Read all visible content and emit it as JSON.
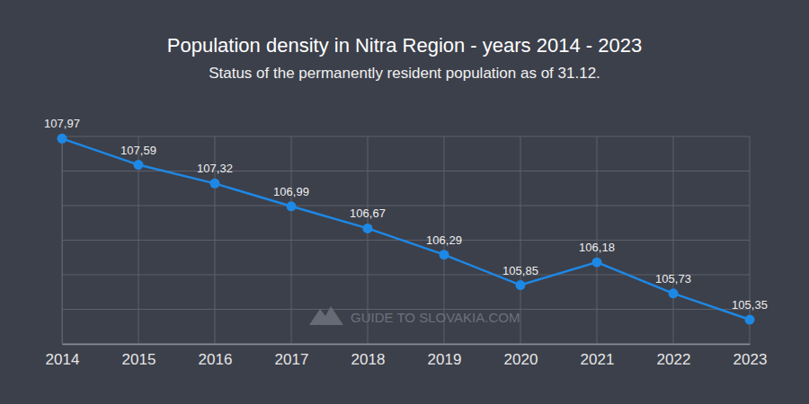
{
  "chart_data": {
    "type": "line",
    "title": "Population density in Nitra Region - years 2014 - 2023",
    "subtitle": "Status of the permanently resident population as of 31.12.",
    "annotations": [
      "GUIDE TO SLOVAKIA.COM"
    ],
    "categories": [
      "2014",
      "2015",
      "2016",
      "2017",
      "2018",
      "2019",
      "2020",
      "2021",
      "2022",
      "2023"
    ],
    "values": [
      107.97,
      107.59,
      107.32,
      106.99,
      106.67,
      106.29,
      105.85,
      106.18,
      105.73,
      105.35
    ],
    "value_labels": [
      "107,97",
      "107,59",
      "107,32",
      "106,99",
      "106,67",
      "106,29",
      "105,85",
      "106,18",
      "105,73",
      "105,35"
    ],
    "color": "#1e88e5",
    "marker": "circle",
    "line_style": "solid",
    "ylim": [
      105,
      108
    ],
    "yticks": [
      105,
      105.5,
      106,
      106.5,
      107,
      107.5,
      108
    ],
    "grid": true,
    "data_labels": true,
    "tick_labels": "x"
  }
}
